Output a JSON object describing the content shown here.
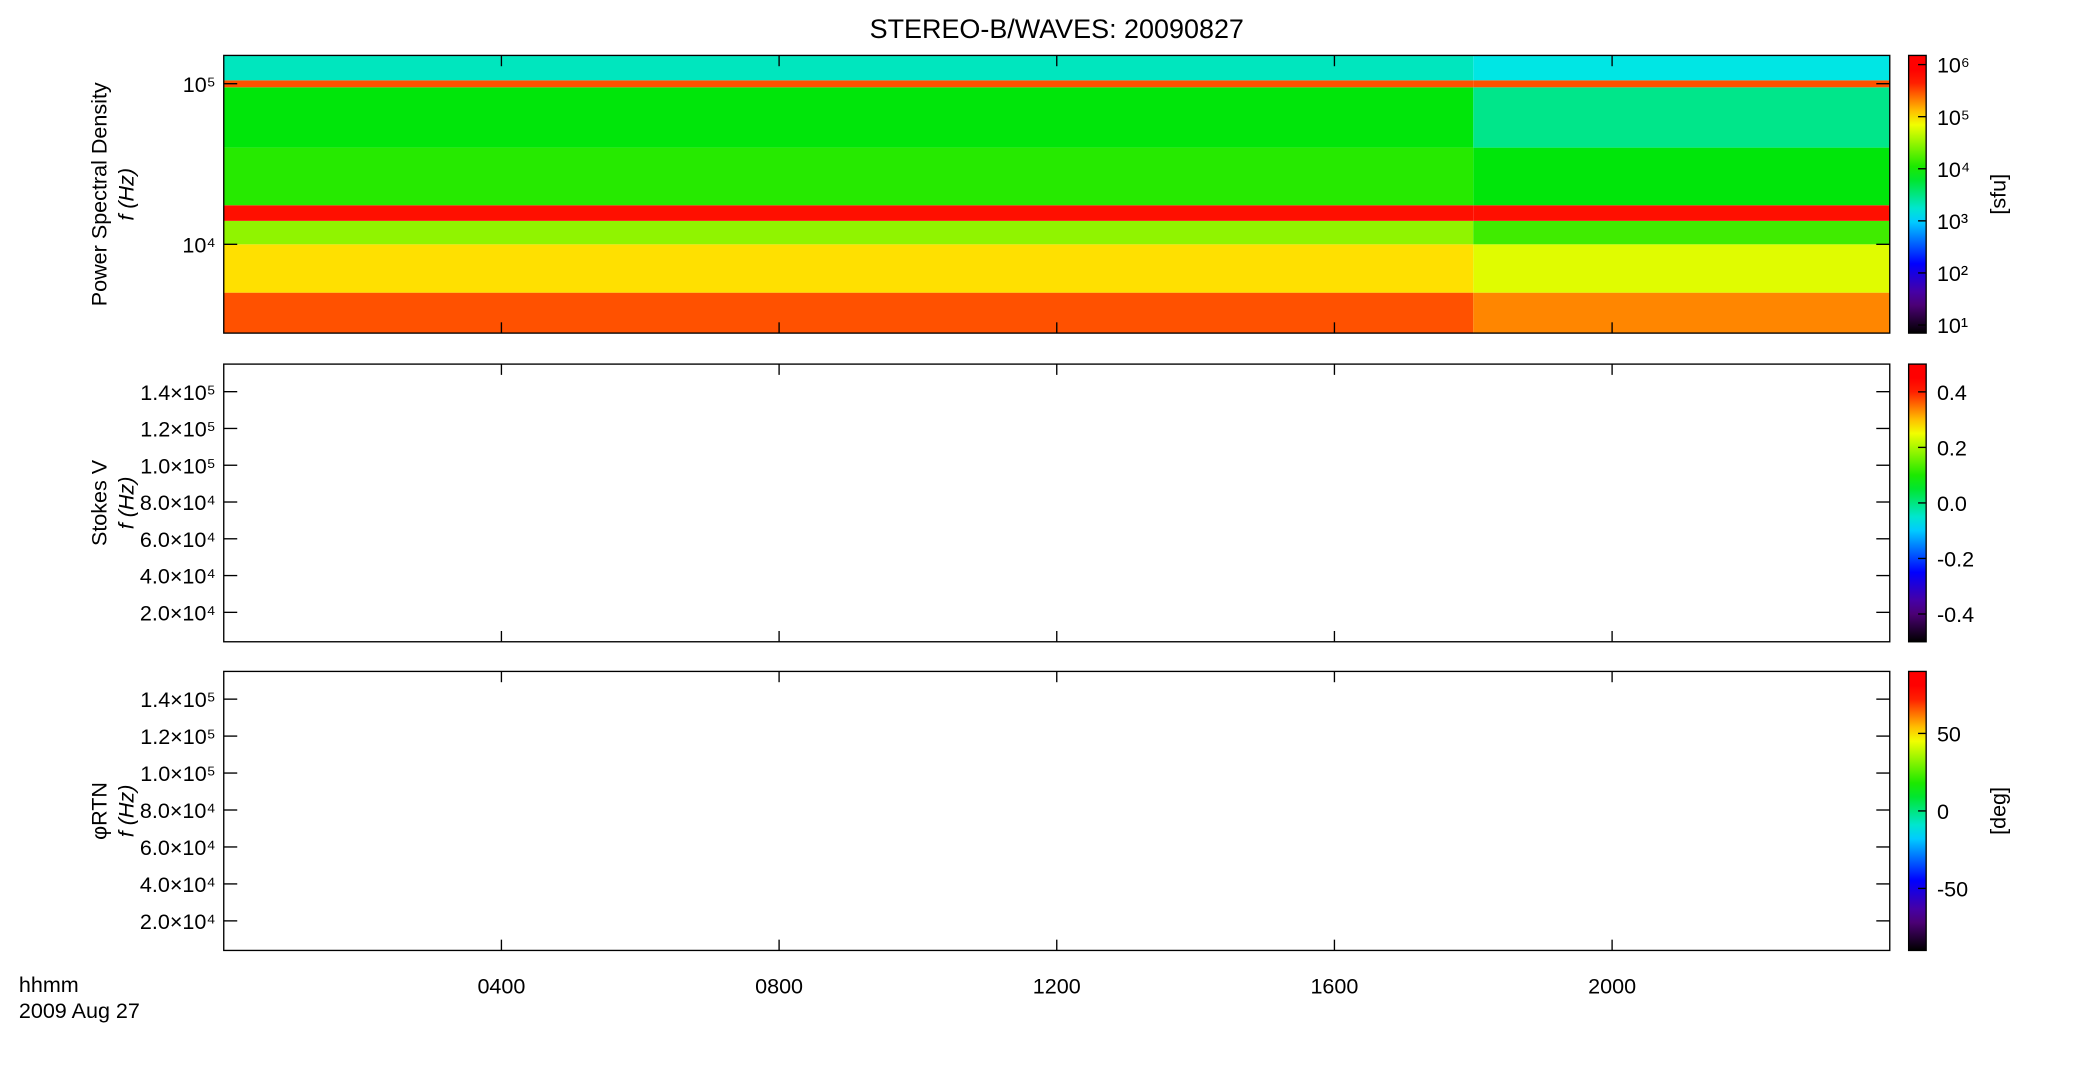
{
  "chart_data": [
    {
      "type": "heatmap",
      "title": "STEREO-B/WAVES: 20090827",
      "ylabel": "Power Spectral Density",
      "ylabel2": "f (Hz)",
      "xlim": [
        0,
        24
      ],
      "xticks": [
        4,
        8,
        12,
        16,
        20
      ],
      "ylim": [
        2800,
        150000
      ],
      "log_y": true,
      "yticks": [
        {
          "value": 10000,
          "label": "10⁴"
        },
        {
          "value": 100000,
          "label": "10⁵"
        }
      ],
      "x_bins": [
        0,
        18,
        24
      ],
      "y_bins": [
        2800,
        5000,
        10000,
        14000,
        17500,
        40000,
        95000,
        105000,
        150000
      ],
      "values": [
        [
          300000,
          200000
        ],
        [
          100000,
          60000
        ],
        [
          30000,
          15000
        ],
        [
          500000,
          500000
        ],
        [
          12000,
          8000
        ],
        [
          8000,
          3000
        ],
        [
          300000,
          300000
        ],
        [
          2000,
          1500
        ]
      ],
      "colorbar": {
        "lim": [
          7,
          1500000
        ],
        "log": true,
        "label": "[sfu]",
        "ticks": [
          {
            "value": 10,
            "label": "10¹"
          },
          {
            "value": 100,
            "label": "10²"
          },
          {
            "value": 1000,
            "label": "10³"
          },
          {
            "value": 10000,
            "label": "10⁴"
          },
          {
            "value": 100000,
            "label": "10⁵"
          },
          {
            "value": 1000000,
            "label": "10⁶"
          }
        ]
      }
    },
    {
      "type": "heatmap",
      "ylabel": "Stokes V",
      "ylabel2": "f (Hz)",
      "xlim": [
        0,
        24
      ],
      "xticks": [
        4,
        8,
        12,
        16,
        20
      ],
      "ylim": [
        4000,
        155000
      ],
      "yticks": [
        {
          "value": 20000,
          "label": "2.0×10⁴"
        },
        {
          "value": 40000,
          "label": "4.0×10⁴"
        },
        {
          "value": 60000,
          "label": "6.0×10⁴"
        },
        {
          "value": 80000,
          "label": "8.0×10⁴"
        },
        {
          "value": 100000,
          "label": "1.0×10⁵"
        },
        {
          "value": 120000,
          "label": "1.2×10⁵"
        },
        {
          "value": 140000,
          "label": "1.4×10⁵"
        }
      ],
      "colorbar": {
        "lim": [
          -0.5,
          0.5
        ],
        "log": false,
        "ticks": [
          -0.4,
          -0.2,
          {
            "value": 0,
            "label": "0.0"
          },
          0.2,
          0.4
        ]
      }
    },
    {
      "type": "heatmap",
      "ylabel": "φRTN",
      "ylabel2": "f (Hz)",
      "xlim": [
        0,
        24
      ],
      "xticks": [
        {
          "value": 4,
          "label": "0400"
        },
        {
          "value": 8,
          "label": "0800"
        },
        {
          "value": 12,
          "label": "1200"
        },
        {
          "value": 16,
          "label": "1600"
        },
        {
          "value": 20,
          "label": "2000"
        }
      ],
      "x_label": "hhmm",
      "x_sublabel": "2009 Aug 27",
      "ylim": [
        4000,
        155000
      ],
      "yticks": [
        {
          "value": 20000,
          "label": "2.0×10⁴"
        },
        {
          "value": 40000,
          "label": "4.0×10⁴"
        },
        {
          "value": 60000,
          "label": "6.0×10⁴"
        },
        {
          "value": 80000,
          "label": "8.0×10⁴"
        },
        {
          "value": 100000,
          "label": "1.0×10⁵"
        },
        {
          "value": 120000,
          "label": "1.2×10⁵"
        },
        {
          "value": 140000,
          "label": "1.4×10⁵"
        }
      ],
      "colorbar": {
        "lim": [
          -90,
          90
        ],
        "log": false,
        "label": "[deg]",
        "ticks": [
          -50,
          0,
          50
        ]
      }
    }
  ]
}
